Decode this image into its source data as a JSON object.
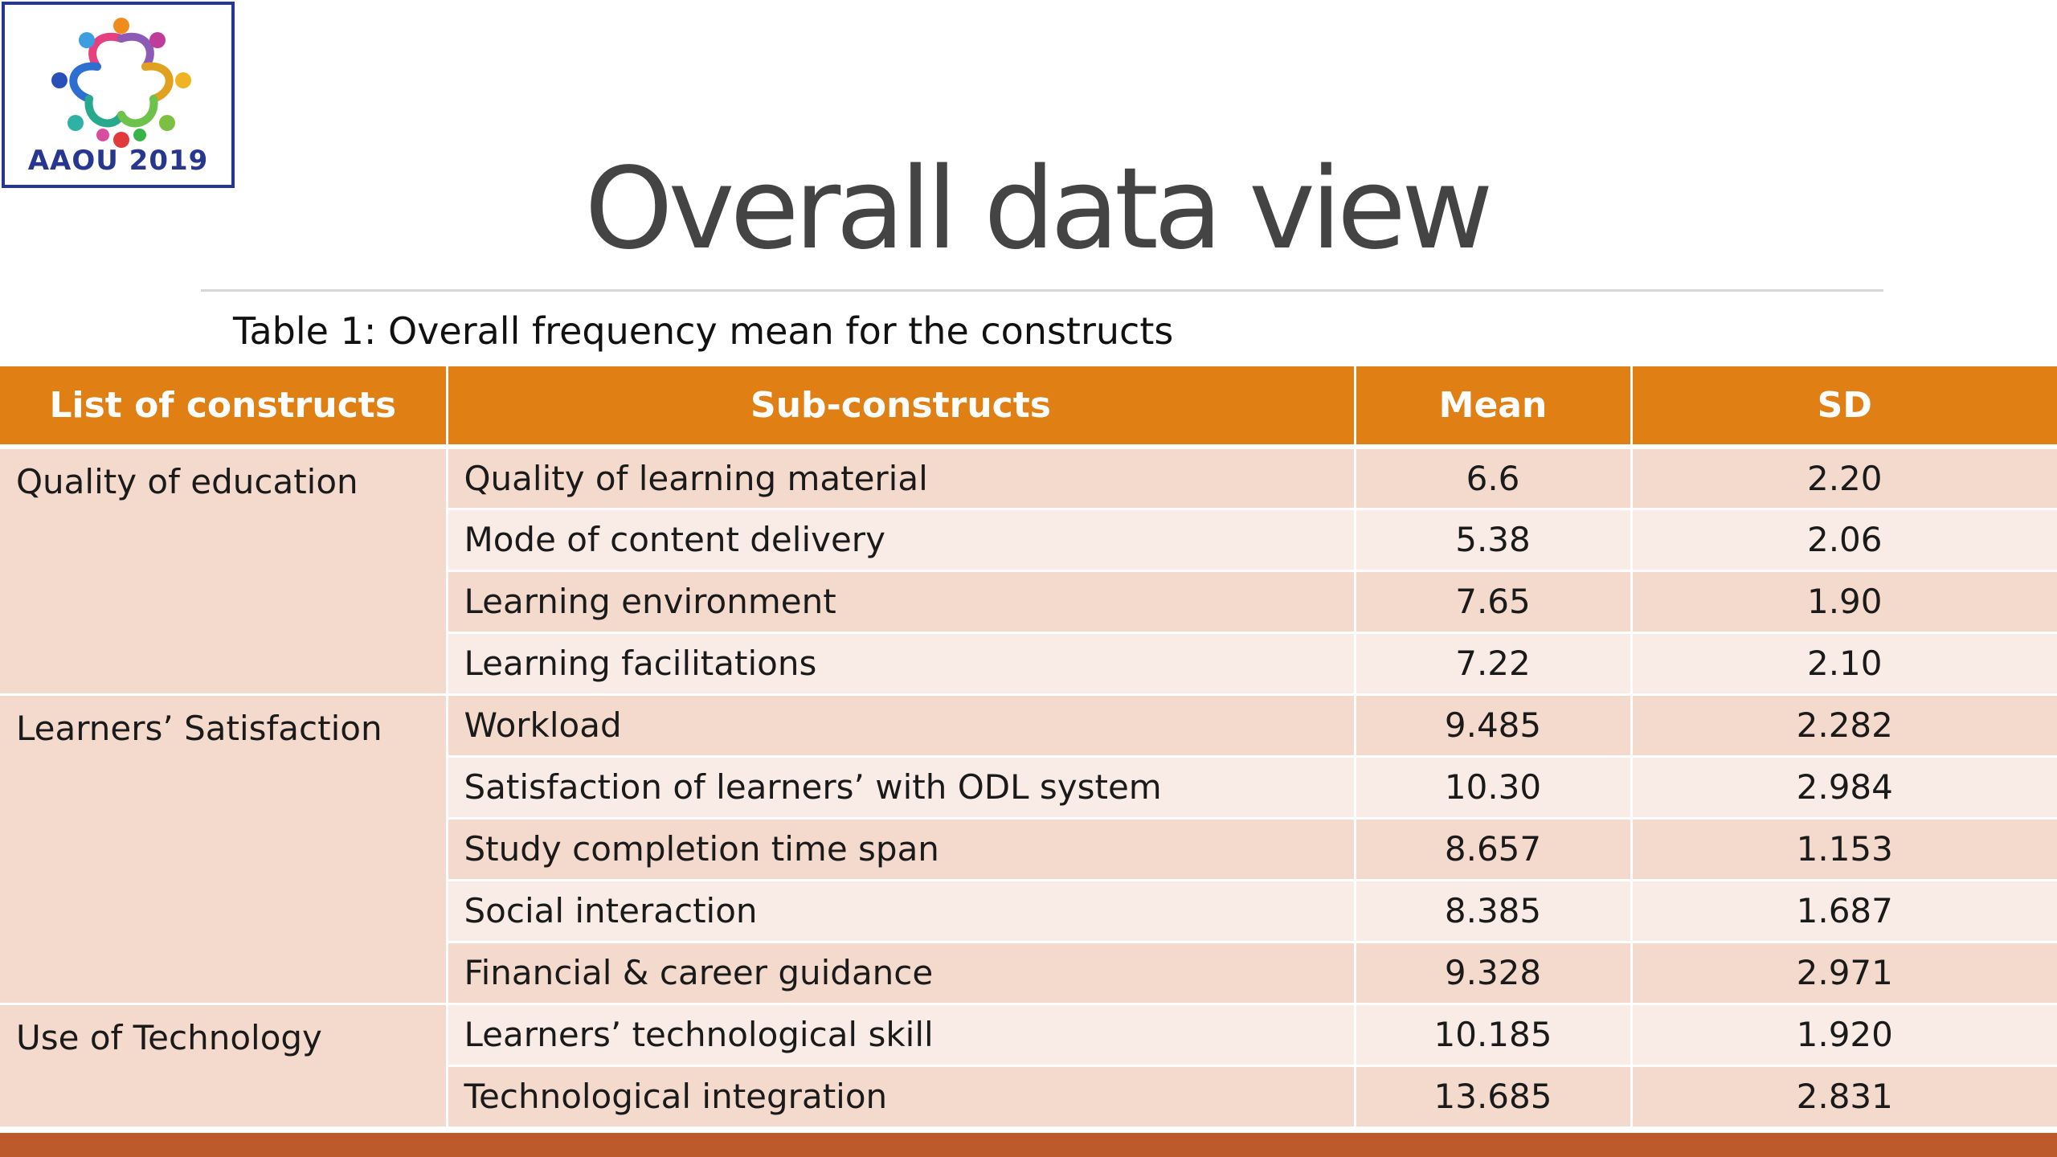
{
  "logo": {
    "text": "AAOU 2019"
  },
  "slide": {
    "title": "Overall data view",
    "caption": "Table 1: Overall frequency mean for the constructs"
  },
  "colors": {
    "header_bg": "#e07f14",
    "row_dark": "#f4d9cd",
    "row_light": "#f9ebe5",
    "bottom_bar": "#bd5a2c",
    "logo_border": "#27378f"
  },
  "table": {
    "headers": [
      "List of constructs",
      "Sub-constructs",
      "Mean",
      "SD"
    ],
    "groups": [
      {
        "construct": "Quality of education",
        "rows": [
          {
            "sub": "Quality of learning material",
            "mean": "6.6",
            "sd": "2.20"
          },
          {
            "sub": "Mode of content delivery",
            "mean": "5.38",
            "sd": "2.06"
          },
          {
            "sub": "Learning environment",
            "mean": "7.65",
            "sd": "1.90"
          },
          {
            "sub": "Learning facilitations",
            "mean": "7.22",
            "sd": "2.10"
          }
        ]
      },
      {
        "construct": "Learners’ Satisfaction",
        "rows": [
          {
            "sub": "Workload",
            "mean": "9.485",
            "sd": "2.282"
          },
          {
            "sub": "Satisfaction of learners’ with ODL system",
            "mean": "10.30",
            "sd": "2.984"
          },
          {
            "sub": "Study completion time span",
            "mean": "8.657",
            "sd": "1.153"
          },
          {
            "sub": "Social interaction",
            "mean": "8.385",
            "sd": "1.687"
          },
          {
            "sub": "Financial & career guidance",
            "mean": "9.328",
            "sd": "2.971"
          }
        ]
      },
      {
        "construct": "Use of Technology",
        "rows": [
          {
            "sub": "Learners’ technological skill",
            "mean": "10.185",
            "sd": "1.920"
          },
          {
            "sub": "Technological integration",
            "mean": "13.685",
            "sd": "2.831"
          }
        ]
      }
    ]
  }
}
